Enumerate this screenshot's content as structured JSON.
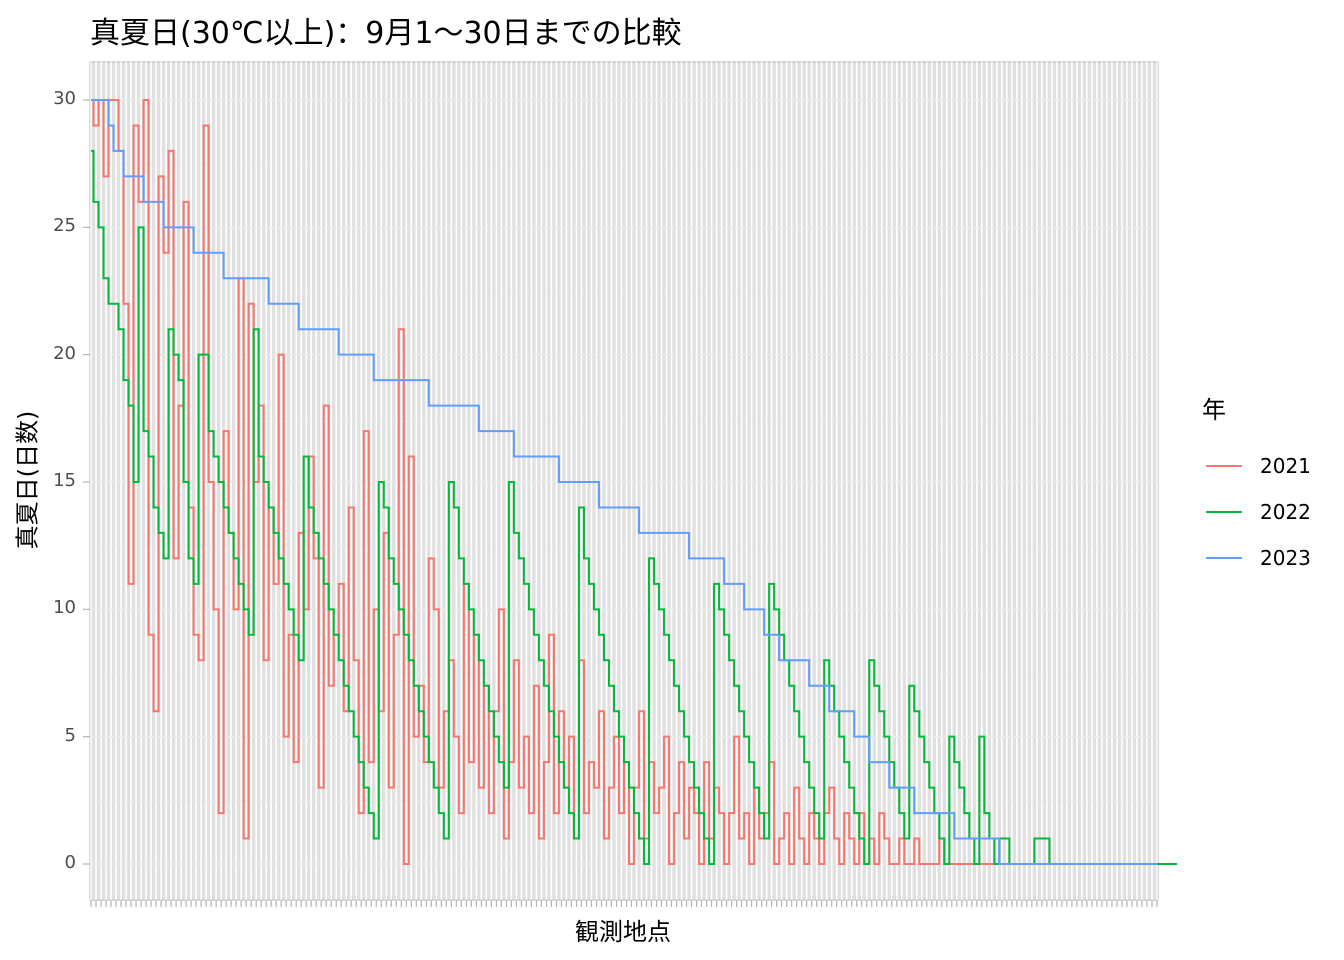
{
  "title": "真夏日(30℃以上)：9月1〜30日までの比較",
  "xlabel": "観測地点",
  "ylabel": "真夏日(日数)",
  "legend": {
    "title": "年",
    "items": [
      {
        "label": "2021",
        "color": "#F8766D"
      },
      {
        "label": "2022",
        "color": "#00BA38"
      },
      {
        "label": "2023",
        "color": "#619CFF"
      }
    ]
  },
  "y_ticks": [
    "0",
    "5",
    "10",
    "15",
    "20",
    "25",
    "30"
  ],
  "chart_data": {
    "type": "line",
    "title": "真夏日(30℃以上)：9月1〜30日までの比較",
    "xlabel": "観測地点",
    "ylabel": "真夏日(日数)",
    "x_note": "約214の観測地点（カテゴリ、ラベル非表示）、2023年の値で降順ソート",
    "ylim": [
      -1.5,
      31.5
    ],
    "y_ticks": [
      0,
      5,
      10,
      15,
      20,
      25,
      30
    ],
    "grid": true,
    "legend_position": "right",
    "n_categories": 214,
    "series": [
      {
        "name": "2023",
        "color": "#619CFF",
        "values": [
          30,
          30,
          30,
          30,
          29,
          28,
          28,
          27,
          27,
          27,
          27,
          26,
          26,
          26,
          26,
          25,
          25,
          25,
          25,
          25,
          25,
          24,
          24,
          24,
          24,
          24,
          24,
          23,
          23,
          23,
          23,
          23,
          23,
          23,
          23,
          23,
          22,
          22,
          22,
          22,
          22,
          22,
          21,
          21,
          21,
          21,
          21,
          21,
          21,
          21,
          20,
          20,
          20,
          20,
          20,
          20,
          20,
          19,
          19,
          19,
          19,
          19,
          19,
          19,
          19,
          19,
          19,
          19,
          18,
          18,
          18,
          18,
          18,
          18,
          18,
          18,
          18,
          18,
          17,
          17,
          17,
          17,
          17,
          17,
          17,
          16,
          16,
          16,
          16,
          16,
          16,
          16,
          16,
          16,
          15,
          15,
          15,
          15,
          15,
          15,
          15,
          15,
          14,
          14,
          14,
          14,
          14,
          14,
          14,
          14,
          13,
          13,
          13,
          13,
          13,
          13,
          13,
          13,
          13,
          13,
          12,
          12,
          12,
          12,
          12,
          12,
          12,
          11,
          11,
          11,
          11,
          10,
          10,
          10,
          10,
          9,
          9,
          9,
          8,
          8,
          8,
          8,
          8,
          8,
          7,
          7,
          7,
          7,
          6,
          6,
          6,
          6,
          6,
          5,
          5,
          5,
          4,
          4,
          4,
          4,
          3,
          3,
          3,
          3,
          3,
          2,
          2,
          2,
          2,
          2,
          2,
          2,
          2,
          1,
          1,
          1,
          1,
          1,
          1,
          1,
          1,
          1,
          0,
          0,
          0,
          0,
          0,
          0,
          0,
          0,
          0,
          0,
          0,
          0,
          0,
          0,
          0,
          0,
          0,
          0,
          0,
          0,
          0,
          0,
          0,
          0,
          0,
          0,
          0,
          0,
          0,
          0,
          0,
          0
        ]
      },
      {
        "name": "2022",
        "color": "#00BA38",
        "values": [
          28,
          26,
          25,
          23,
          22,
          22,
          21,
          19,
          18,
          15,
          25,
          17,
          16,
          14,
          13,
          12,
          21,
          20,
          19,
          15,
          12,
          11,
          20,
          20,
          17,
          16,
          15,
          14,
          13,
          12,
          11,
          10,
          9,
          21,
          16,
          15,
          14,
          13,
          12,
          11,
          10,
          9,
          8,
          16,
          14,
          13,
          12,
          11,
          10,
          9,
          8,
          7,
          6,
          5,
          4,
          3,
          2,
          1,
          15,
          14,
          12,
          11,
          10,
          9,
          8,
          7,
          6,
          5,
          4,
          3,
          2,
          1,
          15,
          14,
          12,
          11,
          10,
          9,
          8,
          7,
          6,
          5,
          4,
          3,
          15,
          13,
          12,
          11,
          10,
          9,
          8,
          7,
          6,
          5,
          4,
          3,
          2,
          1,
          14,
          12,
          11,
          10,
          9,
          8,
          7,
          6,
          5,
          4,
          3,
          2,
          1,
          0,
          12,
          11,
          10,
          9,
          8,
          7,
          6,
          5,
          4,
          3,
          2,
          1,
          0,
          11,
          10,
          9,
          8,
          7,
          6,
          5,
          4,
          3,
          2,
          1,
          11,
          10,
          9,
          8,
          7,
          6,
          5,
          4,
          3,
          2,
          1,
          8,
          7,
          6,
          5,
          4,
          3,
          2,
          1,
          0,
          8,
          7,
          6,
          5,
          4,
          3,
          2,
          1,
          7,
          6,
          5,
          4,
          3,
          2,
          1,
          0,
          5,
          4,
          3,
          2,
          1,
          0,
          5,
          2,
          1,
          0,
          1,
          1,
          0,
          0,
          0,
          0,
          0,
          1,
          1,
          1,
          0,
          0,
          0,
          0,
          0,
          0,
          0,
          0,
          0,
          0,
          0,
          0,
          0,
          0,
          0,
          0,
          0,
          0,
          0,
          0,
          0,
          0,
          0,
          0,
          0,
          0
        ]
      },
      {
        "name": "2021",
        "color": "#F8766D",
        "values": [
          30,
          29,
          30,
          27,
          30,
          30,
          28,
          22,
          11,
          29,
          26,
          30,
          9,
          6,
          27,
          24,
          28,
          12,
          18,
          26,
          14,
          9,
          8,
          29,
          15,
          10,
          2,
          17,
          13,
          10,
          23,
          1,
          22,
          15,
          18,
          8,
          14,
          11,
          20,
          5,
          9,
          4,
          13,
          10,
          16,
          12,
          3,
          18,
          7,
          9,
          11,
          6,
          14,
          8,
          2,
          17,
          4,
          10,
          6,
          13,
          3,
          9,
          21,
          0,
          16,
          5,
          7,
          4,
          12,
          10,
          3,
          6,
          8,
          5,
          2,
          11,
          4,
          9,
          3,
          7,
          2,
          6,
          10,
          1,
          4,
          8,
          3,
          5,
          2,
          7,
          1,
          4,
          9,
          2,
          6,
          3,
          5,
          1,
          8,
          2,
          4,
          3,
          6,
          1,
          3,
          5,
          2,
          4,
          0,
          3,
          6,
          1,
          4,
          2,
          3,
          5,
          0,
          2,
          4,
          1,
          3,
          2,
          0,
          4,
          1,
          3,
          2,
          0,
          2,
          5,
          1,
          2,
          0,
          3,
          1,
          2,
          4,
          0,
          1,
          2,
          0,
          3,
          1,
          0,
          2,
          1,
          0,
          2,
          3,
          1,
          0,
          2,
          1,
          0,
          2,
          0,
          1,
          0,
          2,
          1,
          0,
          0,
          1,
          0,
          0,
          1,
          0,
          0,
          0,
          0,
          1,
          0,
          0,
          0,
          0,
          0,
          0,
          0,
          0,
          0,
          0,
          0,
          0,
          0,
          0,
          0,
          0,
          0,
          0,
          0,
          0,
          0,
          0,
          0,
          0,
          0,
          0,
          0,
          0,
          0,
          0,
          0,
          0,
          0,
          0,
          0,
          0,
          0,
          0,
          0,
          0,
          0,
          0,
          0
        ]
      }
    ]
  }
}
